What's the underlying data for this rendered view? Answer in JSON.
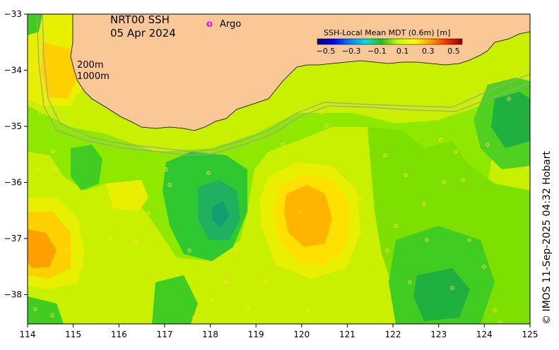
{
  "title": {
    "product": "NRT00 SSH",
    "date": "05 Apr 2024"
  },
  "legend": {
    "argo_symbol": "o",
    "argo_label": "Argo",
    "argo_color": "#ff00ff",
    "colorbar_title": "SSH-Local Mean MDT (0.6m) [m]",
    "colorbar_ticks": [
      "−0.5",
      "−0.3",
      "−0.1",
      "0.1",
      "0.3",
      "0.5"
    ],
    "colorbar_stops": [
      "#00007f",
      "#0000ff",
      "#0080ff",
      "#00e0e0",
      "#20c020",
      "#c0ff00",
      "#ffff00",
      "#ffa000",
      "#ff3000",
      "#8b0000"
    ]
  },
  "map": {
    "x_ticks": [
      "114",
      "115",
      "116",
      "117",
      "118",
      "119",
      "120",
      "121",
      "122",
      "123",
      "124",
      "125"
    ],
    "y_ticks": [
      "−33",
      "−34",
      "−35",
      "−36",
      "−37",
      "−38"
    ],
    "land_color": "#fac896",
    "isobath_labels": [
      "200m",
      "1000m"
    ],
    "isobath_color": "#a0a0a0"
  },
  "credit": "© IMOS 11-Sep-2025 04:32 Hobart"
}
